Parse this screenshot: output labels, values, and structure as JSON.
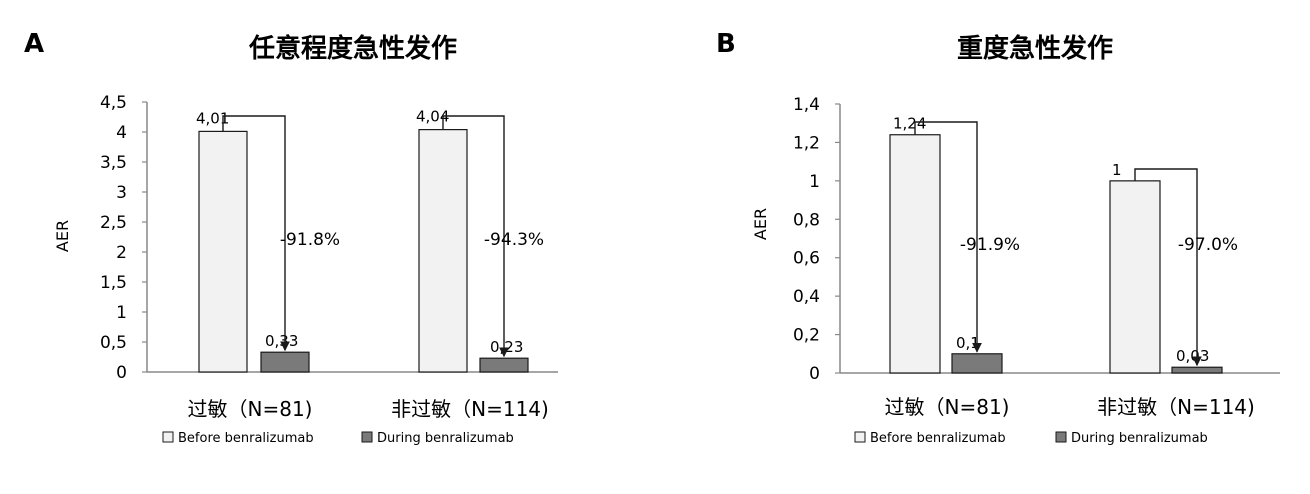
{
  "panels": [
    {
      "panel_label": "A",
      "title": "任意程度急性发作",
      "ylabel": "AER",
      "y_ticks": [
        "0",
        "0,5",
        "1",
        "1,5",
        "2",
        "2,5",
        "3",
        "3,5",
        "4",
        "4,5"
      ],
      "categories": [
        "过敏（N=81)",
        "非过敏（N=114)"
      ],
      "value_labels": {
        "before": [
          "4,01",
          "4,04"
        ],
        "during": [
          "0,33",
          "0,23"
        ]
      },
      "reductions": [
        "-91.8%",
        "-94.3%"
      ],
      "legend": [
        "Before benralizumab",
        "During benralizumab"
      ]
    },
    {
      "panel_label": "B",
      "title": "重度急性发作",
      "ylabel": "AER",
      "y_ticks": [
        "0",
        "0,2",
        "0,4",
        "0,6",
        "0,8",
        "1",
        "1,2",
        "1,4"
      ],
      "categories": [
        "过敏（N=81)",
        "非过敏（N=114)"
      ],
      "value_labels": {
        "before": [
          "1,24",
          "1"
        ],
        "during": [
          "0,1",
          "0,03"
        ]
      },
      "reductions": [
        "-91.9%",
        "-97.0%"
      ],
      "legend": [
        "Before benralizumab",
        "During benralizumab"
      ]
    }
  ],
  "colors": {
    "before": "#f2f2f2",
    "during": "#7a7a7a",
    "stroke": "#1a1a1a"
  },
  "chart_data": [
    {
      "type": "bar",
      "title": "任意程度急性发作",
      "xlabel": "",
      "ylabel": "AER",
      "ylim": [
        0,
        4.5
      ],
      "categories": [
        "过敏（N=81)",
        "非过敏（N=114)"
      ],
      "series": [
        {
          "name": "Before benralizumab",
          "values": [
            4.01,
            4.04
          ]
        },
        {
          "name": "During benralizumab",
          "values": [
            0.33,
            0.23
          ]
        }
      ],
      "annotations": [
        "-91.8%",
        "-94.3%"
      ],
      "grid": false,
      "legend_position": "bottom"
    },
    {
      "type": "bar",
      "title": "重度急性发作",
      "xlabel": "",
      "ylabel": "AER",
      "ylim": [
        0,
        1.4
      ],
      "categories": [
        "过敏（N=81)",
        "非过敏（N=114)"
      ],
      "series": [
        {
          "name": "Before benralizumab",
          "values": [
            1.24,
            1.0
          ]
        },
        {
          "name": "During benralizumab",
          "values": [
            0.1,
            0.03
          ]
        }
      ],
      "annotations": [
        "-91.9%",
        "-97.0%"
      ],
      "grid": false,
      "legend_position": "bottom"
    }
  ]
}
